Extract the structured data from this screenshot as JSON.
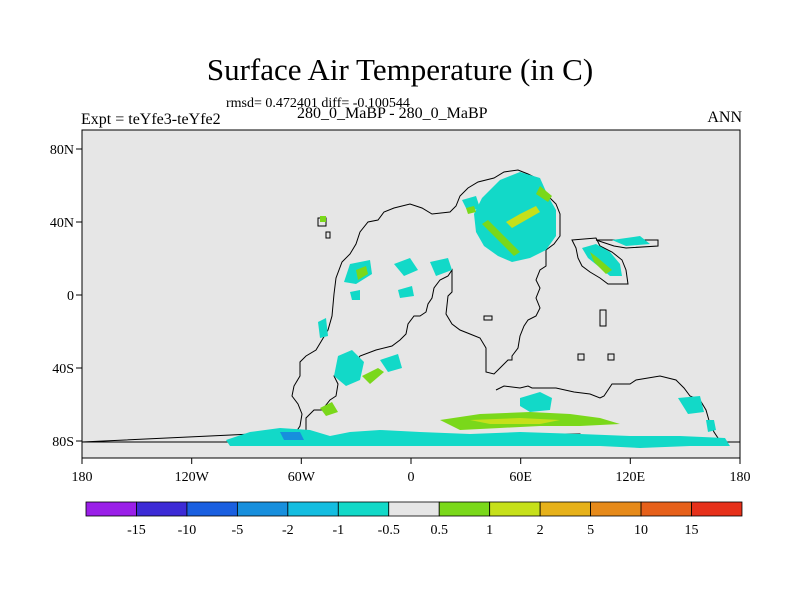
{
  "title": "Surface Air Temperature (in C)",
  "stats_line": "rmsd= 0.472401 diff= -0.100544",
  "experiment_label": "Expt = teYfe3-teYfe2",
  "period_label": "280_0_MaBP - 280_0_MaBP",
  "season_label": "ANN",
  "map": {
    "x_ticks": [
      "180",
      "120W",
      "60W",
      "0",
      "60E",
      "120E",
      "180"
    ],
    "y_ticks": [
      "80N",
      "40N",
      "0",
      "40S",
      "80S"
    ],
    "background_color": "#e6e6e6"
  },
  "colorbar": {
    "colors": [
      "#9a1fe8",
      "#3d2bd6",
      "#1a5fe0",
      "#178fdd",
      "#14bde0",
      "#12d9c8",
      "#e6e6e6",
      "#7ad81a",
      "#c6e01a",
      "#e6b11a",
      "#e68a1a",
      "#e6601a",
      "#e6301a"
    ],
    "labels": [
      "-15",
      "-10",
      "-5",
      "-2",
      "-1",
      "-0.5",
      "0.5",
      "1",
      "2",
      "5",
      "10",
      "15"
    ]
  }
}
